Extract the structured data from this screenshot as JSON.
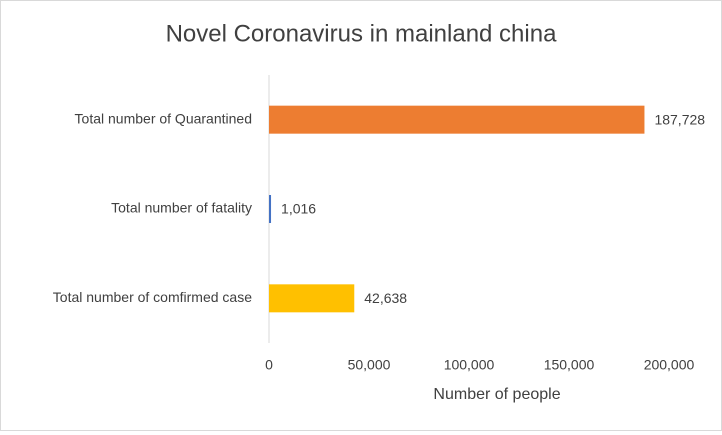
{
  "chart_data": {
    "type": "hbar",
    "title": "Novel Coronavirus in mainland china",
    "x_label": "Number of people",
    "categories": [
      "Total number of Quarantined",
      "Total number of fatality",
      "Total number of comfirmed case"
    ],
    "values": [
      187728,
      1016,
      42638
    ],
    "value_labels": [
      "187,728",
      "1,016",
      "42,638"
    ],
    "colors": [
      "#ed7d31",
      "#4472c4",
      "#ffc000"
    ],
    "xlim": [
      0,
      200000
    ],
    "xticks": [
      0,
      {
        "value": 50000,
        "label": "50,000"
      },
      {
        "value": 100000,
        "label": "100,000"
      },
      {
        "value": 150000,
        "label": "150,000"
      },
      {
        "value": 200000,
        "label": "200,000"
      }
    ],
    "grid": false
  }
}
